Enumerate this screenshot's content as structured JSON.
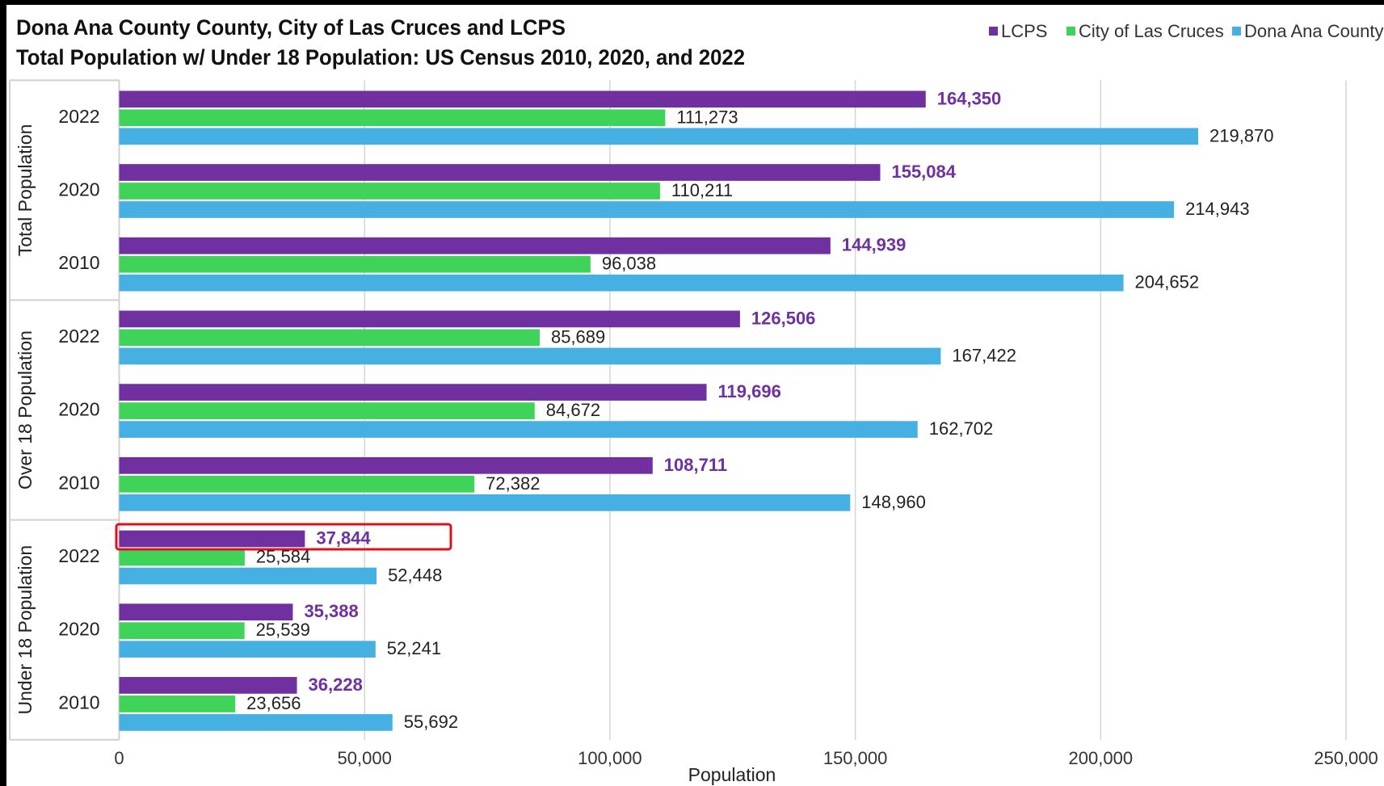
{
  "chart_data": {
    "type": "bar",
    "orientation": "horizontal",
    "title": "Dona Ana County County, City of Las Cruces and LCPS",
    "subtitle": "Total Population w/ Under 18 Population: US Census 2010, 2020, and 2022",
    "xlabel": "Population",
    "category_groups": [
      "Total Population",
      "Over 18 Population",
      "Under 18 Population"
    ],
    "categories": [
      "2022",
      "2020",
      "2010",
      "2022",
      "2020",
      "2010",
      "2022",
      "2020",
      "2010"
    ],
    "series": [
      {
        "name": "LCPS",
        "color": "#7030a0",
        "values": [
          164350,
          155084,
          144939,
          126506,
          119696,
          108711,
          37844,
          35388,
          36228
        ],
        "value_labels": [
          "164,350",
          "155,084",
          "144,939",
          "126,506",
          "119,696",
          "108,711",
          "37,844",
          "35,388",
          "36,228"
        ]
      },
      {
        "name": "City of Las Cruces",
        "color": "#3fd35a",
        "values": [
          111273,
          110211,
          96038,
          85689,
          84672,
          72382,
          25584,
          25539,
          23656
        ],
        "value_labels": [
          "111,273",
          "110,211",
          "96,038",
          "85,689",
          "84,672",
          "72,382",
          "25,584",
          "25,539",
          "23,656"
        ]
      },
      {
        "name": "Dona Ana County",
        "color": "#47b0e3",
        "values": [
          219870,
          214943,
          204652,
          167422,
          162702,
          148960,
          52448,
          52241,
          55692
        ],
        "value_labels": [
          "219,870",
          "214,943",
          "204,652",
          "167,422",
          "162,702",
          "148,960",
          "52,448",
          "52,241",
          "55,692"
        ]
      }
    ],
    "xlim": [
      0,
      250000
    ],
    "xticks": [
      0,
      {
        "value": 50000,
        "label": "50,000"
      },
      {
        "value": 100000,
        "label": "100,000"
      },
      {
        "value": 150000,
        "label": "150,000"
      },
      {
        "value": 200000,
        "label": "200,000"
      },
      {
        "value": 250000,
        "label": "250,000"
      }
    ],
    "grid": true,
    "legend": "top-right"
  }
}
